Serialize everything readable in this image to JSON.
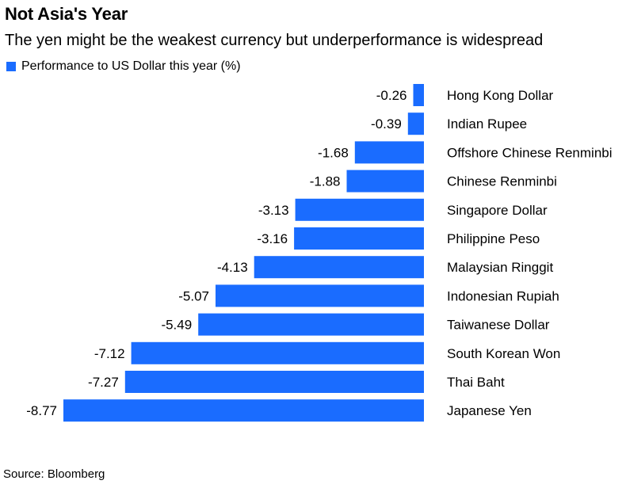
{
  "title": "Not Asia's Year",
  "subtitle": "The yen might be the weakest currency but underperformance is widespread",
  "legend_label": "Performance to US Dollar this year (%)",
  "source": "Source: Bloomberg",
  "colors": {
    "bar": "#1a6cff",
    "text": "#000000"
  },
  "chart_data": {
    "type": "bar",
    "orientation": "horizontal",
    "categories": [
      "Hong Kong Dollar",
      "Indian Rupee",
      "Offshore Chinese Renminbi",
      "Chinese Renminbi",
      "Singapore Dollar",
      "Philippine Peso",
      "Malaysian Ringgit",
      "Indonesian Rupiah",
      "Taiwanese Dollar",
      "South Korean Won",
      "Thai Baht",
      "Japanese Yen"
    ],
    "series": [
      {
        "name": "Performance to US Dollar this year (%)",
        "values": [
          -0.26,
          -0.39,
          -1.68,
          -1.88,
          -3.13,
          -3.16,
          -4.13,
          -5.07,
          -5.49,
          -7.12,
          -7.27,
          -8.77
        ]
      }
    ],
    "value_labels": [
      "-0.26",
      "-0.39",
      "-1.68",
      "-1.88",
      "-3.13",
      "-3.16",
      "-4.13",
      "-5.07",
      "-5.49",
      "-7.12",
      "-7.27",
      "-8.77"
    ],
    "xlim": [
      -8.77,
      0
    ],
    "grid": false,
    "legend_position": "top-left"
  }
}
